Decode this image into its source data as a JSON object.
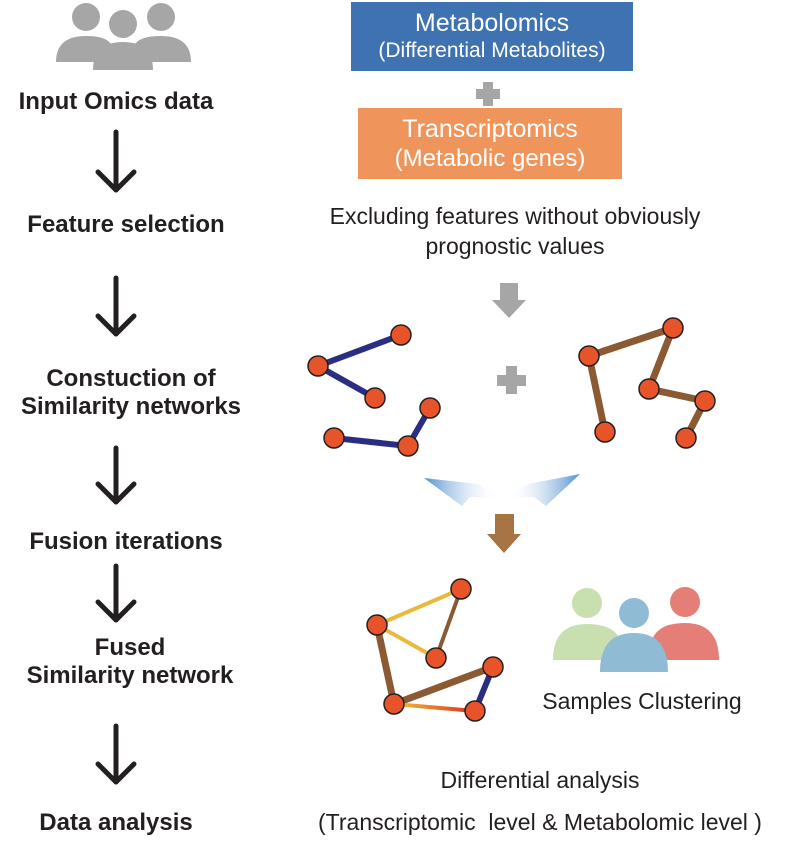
{
  "steps": [
    {
      "label": "Input Omics data"
    },
    {
      "label": "Feature selection"
    },
    {
      "label_line1": "Constuction of",
      "label_line2": "Similarity networks"
    },
    {
      "label": "Fusion iterations"
    },
    {
      "label_line1": "Fused",
      "label_line2": "Similarity network"
    },
    {
      "label": "Data analysis"
    }
  ],
  "boxes": {
    "metabolomics": {
      "title": "Metabolomics",
      "subtitle": "(Differential Metabolites)",
      "color": "#3f72b0"
    },
    "transcriptomics": {
      "title": "Transcriptomics",
      "subtitle": "(Metabolic genes)",
      "color": "#ef945a"
    }
  },
  "feature_selection_text": {
    "line1": "Excluding features without obviously",
    "line2": "prognostic values"
  },
  "clustering_label": "Samples Clustering",
  "analysis_text": {
    "line1": "Differential analysis",
    "line2": "(Transcriptomic  level & Metabolomic level )"
  },
  "colors": {
    "node": "#e8542a",
    "metabolomic_edge": "#2a2e82",
    "transcriptomic_edge": "#8b5a32",
    "gray_arrow": "#a6a6a6",
    "brown_arrow": "#a87443",
    "people_gray": "#a6a6a6",
    "person_green": "#c8dfb0",
    "person_blue": "#8fbcd4",
    "person_red": "#e47e76"
  }
}
